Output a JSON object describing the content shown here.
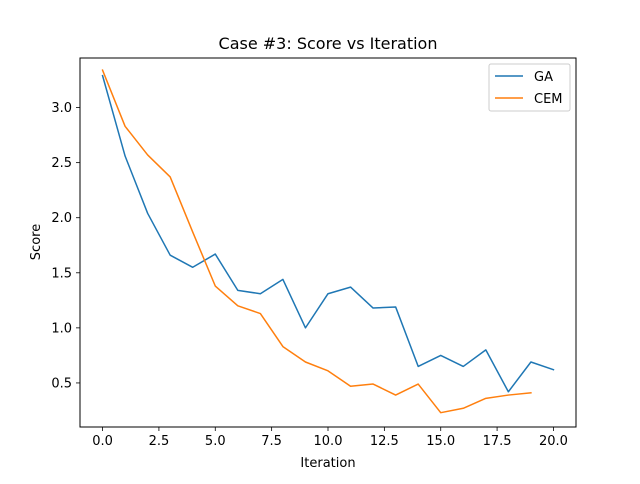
{
  "chart_data": {
    "type": "line",
    "title": "Case #3: Score vs Iteration",
    "xlabel": "Iteration",
    "ylabel": "Score",
    "xlim": [
      -1.0,
      21.0
    ],
    "ylim": [
      0.1,
      3.45
    ],
    "xticks": [
      0.0,
      2.5,
      5.0,
      7.5,
      10.0,
      12.5,
      15.0,
      17.5,
      20.0
    ],
    "xtick_labels": [
      "0.0",
      "2.5",
      "5.0",
      "7.5",
      "10.0",
      "12.5",
      "15.0",
      "17.5",
      "20.0"
    ],
    "yticks": [
      0.5,
      1.0,
      1.5,
      2.0,
      2.5,
      3.0
    ],
    "ytick_labels": [
      "0.5",
      "1.0",
      "1.5",
      "2.0",
      "2.5",
      "3.0"
    ],
    "grid": false,
    "legend_position": "top-right",
    "series": [
      {
        "name": "GA",
        "color": "#1f77b4",
        "x": [
          0,
          1,
          2,
          3,
          4,
          5,
          6,
          7,
          8,
          9,
          10,
          11,
          12,
          13,
          14,
          15,
          16,
          17,
          18,
          19,
          20
        ],
        "values": [
          3.29,
          2.56,
          2.04,
          1.66,
          1.55,
          1.67,
          1.34,
          1.31,
          1.44,
          1.0,
          1.31,
          1.37,
          1.18,
          1.19,
          0.65,
          0.75,
          0.65,
          0.8,
          0.42,
          0.69,
          0.62
        ]
      },
      {
        "name": "CEM",
        "color": "#ff7f0e",
        "x": [
          0,
          1,
          2,
          3,
          4,
          5,
          6,
          7,
          8,
          9,
          10,
          11,
          12,
          13,
          14,
          15,
          16,
          17,
          18,
          19
        ],
        "values": [
          3.34,
          2.83,
          2.57,
          2.37,
          1.87,
          1.38,
          1.2,
          1.13,
          0.83,
          0.69,
          0.61,
          0.47,
          0.49,
          0.39,
          0.49,
          0.23,
          0.27,
          0.36,
          0.39,
          0.41
        ]
      }
    ]
  }
}
